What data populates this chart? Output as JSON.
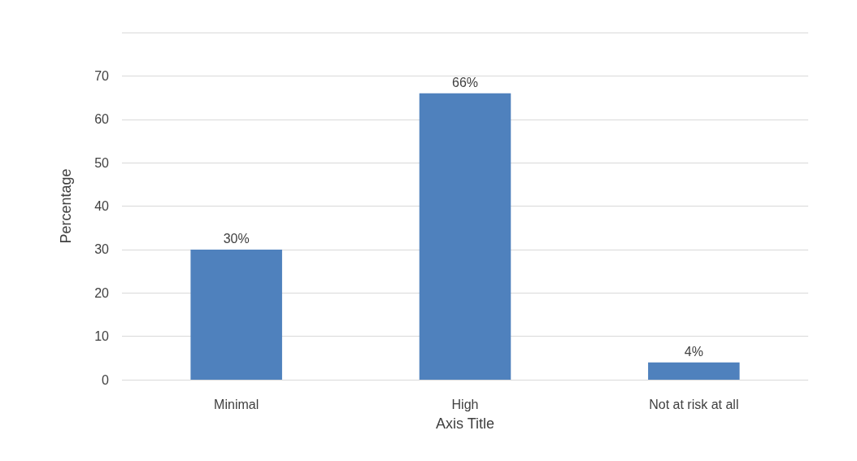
{
  "chart_data": {
    "type": "bar",
    "xlabel": "Axis Title",
    "ylabel": "Percentage",
    "categories": [
      "Minimal",
      "High",
      "Not at risk at all"
    ],
    "values": [
      30,
      66,
      4
    ],
    "value_labels": [
      "30%",
      "66%",
      "4%"
    ],
    "color": "#4f81bd",
    "ylim": [
      0,
      80
    ],
    "yticks": [
      0,
      10,
      20,
      30,
      40,
      50,
      60,
      70,
      {
        "value": 80,
        "label": null
      }
    ],
    "grid": true
  }
}
